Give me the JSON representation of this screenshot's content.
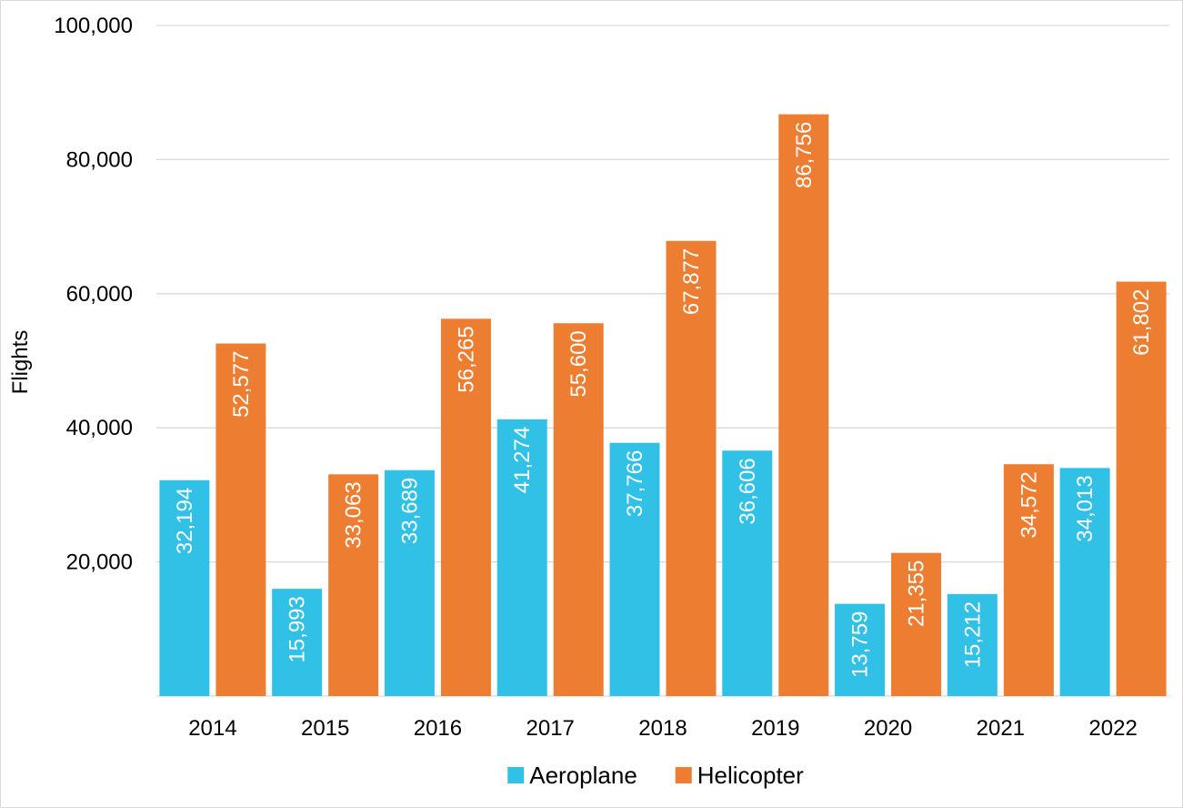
{
  "chart_data": {
    "type": "bar",
    "categories": [
      "2014",
      "2015",
      "2016",
      "2017",
      "2018",
      "2019",
      "2020",
      "2021",
      "2022"
    ],
    "series": [
      {
        "name": "Aeroplane",
        "color": "#31c1e6",
        "values": [
          32194,
          15993,
          33689,
          41274,
          37766,
          36606,
          13759,
          15212,
          34013
        ],
        "labels": [
          "32,194",
          "15,993",
          "33,689",
          "41,274",
          "37,766",
          "36,606",
          "13,759",
          "15,212",
          "34,013"
        ]
      },
      {
        "name": "Helicopter",
        "color": "#ed7d31",
        "values": [
          52577,
          33063,
          56265,
          55600,
          67877,
          86756,
          21355,
          34572,
          61802
        ],
        "labels": [
          "52,577",
          "33,063",
          "56,265",
          "55,600",
          "67,877",
          "86,756",
          "21,355",
          "34,572",
          "61,802"
        ]
      }
    ],
    "title": "",
    "xlabel": "",
    "ylabel": "Flights",
    "ylim": [
      0,
      100000
    ],
    "yticks": [
      20000,
      40000,
      60000,
      80000,
      100000
    ],
    "ytick_labels": [
      "20,000",
      "40,000",
      "60,000",
      "80,000",
      "100,000"
    ],
    "grid": true,
    "legend_position": "bottom"
  }
}
